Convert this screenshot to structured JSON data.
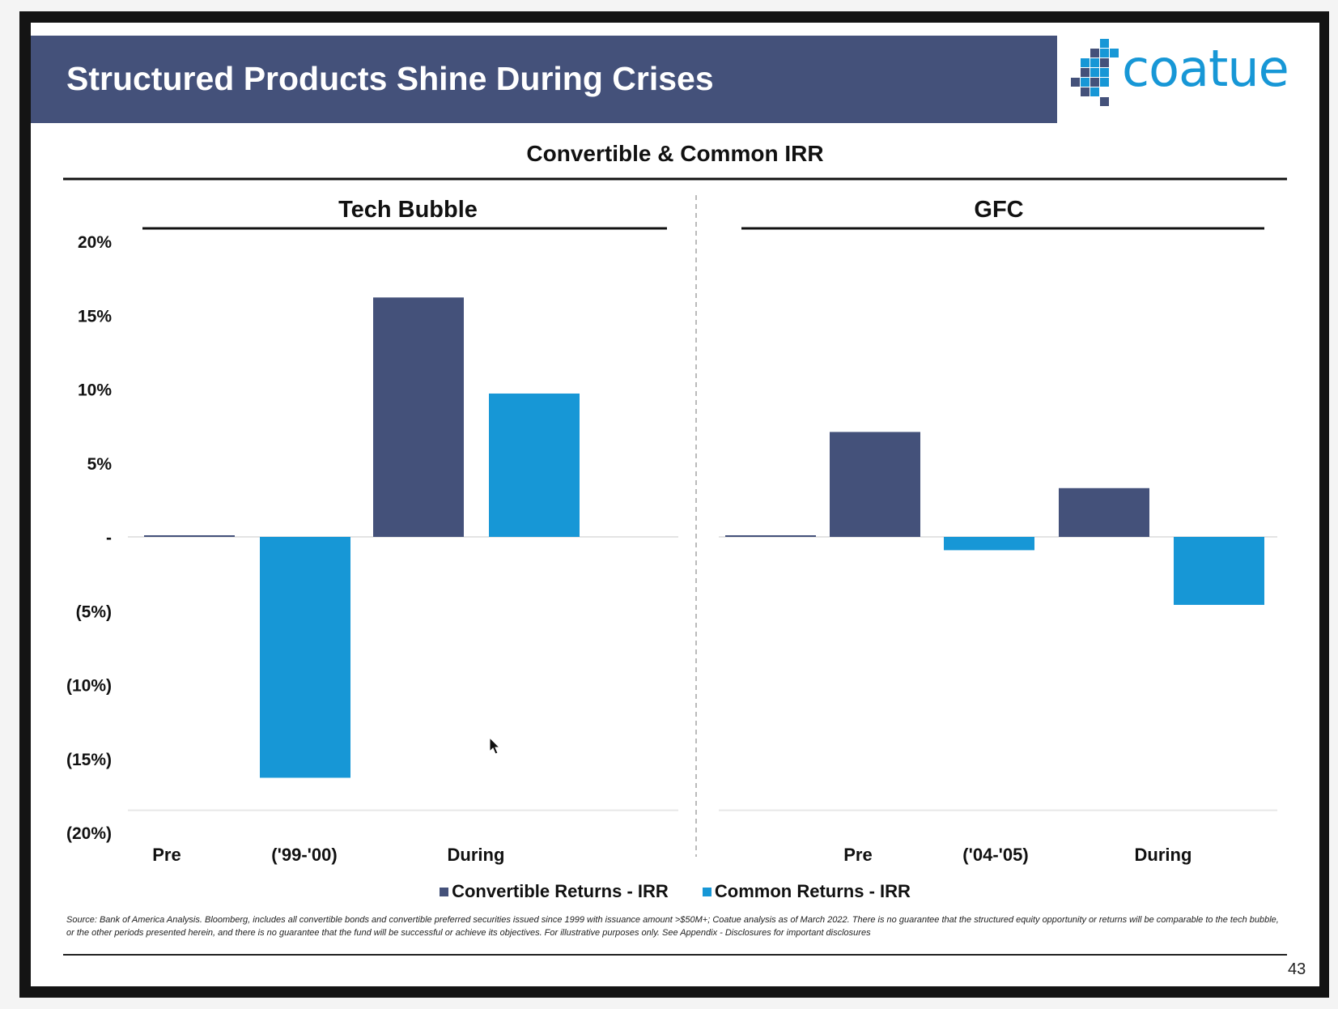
{
  "slide": {
    "title": "Structured Products Shine During Crises",
    "logo_text": "coatue",
    "page_number": "43",
    "source_note": "Source: Bank of America Analysis. Bloomberg, includes all convertible bonds and convertible preferred securities issued since 1999 with issuance amount >$50M+; Coatue analysis as of March 2022. There is no guarantee that the structured equity opportunity or returns will be comparable to the tech bubble, or the other periods presented herein, and there is no guarantee that the fund will be successful or achieve its objectives. For illustrative purposes only. See Appendix - Disclosures for important disclosures"
  },
  "colors": {
    "title_bar": "#44517a",
    "convertible": "#44517a",
    "common": "#1797d6",
    "logo_blue": "#1797d6",
    "logo_dark": "#44517a"
  },
  "chart_data": {
    "type": "bar",
    "title": "Convertible & Common IRR",
    "ylim": [
      -20,
      20
    ],
    "y_ticks": [
      20,
      15,
      10,
      5,
      0,
      -5,
      -10,
      -15,
      -20
    ],
    "y_tick_labels": [
      "20%",
      "15%",
      "10%",
      "5%",
      "-",
      "(5%)",
      "(10%)",
      "(15%)",
      "(20%)"
    ],
    "legend": [
      {
        "label": "Convertible Returns - IRR",
        "color": "#44517a"
      },
      {
        "label": "Common Returns - IRR",
        "color": "#1797d6"
      }
    ],
    "panels": [
      {
        "name": "Tech Bubble",
        "categories": [
          "Pre",
          "('99-'00)",
          "During"
        ],
        "bars": [
          {
            "series": "Convertible Returns - IRR",
            "value": 0.1
          },
          {
            "series": "Common Returns - IRR",
            "value": -16.3
          },
          {
            "series": "Convertible Returns - IRR",
            "value": 16.2
          },
          {
            "series": "Common Returns - IRR",
            "value": 9.7
          }
        ]
      },
      {
        "name": "GFC",
        "categories": [
          "Pre",
          "('04-'05)",
          "During"
        ],
        "bars": [
          {
            "series": "Convertible Returns - IRR",
            "value": 0
          },
          {
            "series": "Convertible Returns - IRR",
            "value": 7.1
          },
          {
            "series": "Common Returns - IRR",
            "value": -0.9
          },
          {
            "series": "Convertible Returns - IRR",
            "value": 3.3
          },
          {
            "series": "Common Returns - IRR",
            "value": -4.6
          }
        ]
      }
    ]
  }
}
